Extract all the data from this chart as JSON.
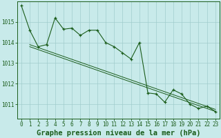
{
  "bg_color": "#c8eaea",
  "grid_color": "#a0cccc",
  "line_color": "#1a5c1a",
  "title": "Graphe pression niveau de la mer (hPa)",
  "xlim": [
    -0.5,
    23.5
  ],
  "ylim": [
    1010.3,
    1016.0
  ],
  "yticks": [
    1011,
    1012,
    1013,
    1014,
    1015
  ],
  "xticks": [
    0,
    1,
    2,
    3,
    4,
    5,
    6,
    7,
    8,
    9,
    10,
    11,
    12,
    13,
    14,
    15,
    16,
    17,
    18,
    19,
    20,
    21,
    22,
    23
  ],
  "tick_fontsize": 5.5,
  "title_fontsize": 7.5,
  "main_line": [
    1015.8,
    1014.6,
    1013.8,
    1013.9,
    1015.2,
    1014.65,
    1014.7,
    1014.35,
    1014.6,
    1014.6,
    1014.0,
    1013.8,
    1013.5,
    1013.2,
    1014.0,
    1011.55,
    1011.5,
    1011.1,
    1011.7,
    1011.5,
    1011.0,
    1010.8,
    1010.9,
    1010.65
  ],
  "trend1_x": [
    1,
    23
  ],
  "trend1_y": [
    1013.8,
    1010.65
  ],
  "trend2_x": [
    1,
    23
  ],
  "trend2_y": [
    1013.9,
    1010.75
  ]
}
